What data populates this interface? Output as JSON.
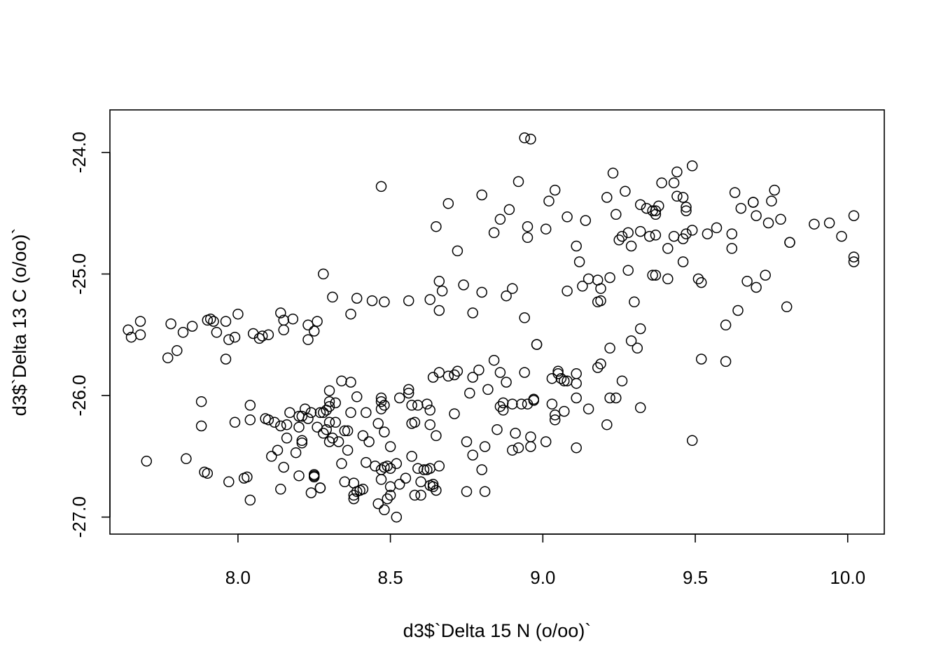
{
  "chart_data": {
    "type": "scatter",
    "title": "",
    "xlabel": "d3$`Delta 15 N (o/oo)`",
    "ylabel": "d3$`Delta 13 C (o/oo)`",
    "xlim": [
      7.58,
      10.12
    ],
    "ylim": [
      -27.14,
      -23.65
    ],
    "xticks": [
      8.0,
      8.5,
      9.0,
      9.5,
      10.0
    ],
    "xtick_labels": [
      "8.0",
      "8.5",
      "9.0",
      "9.5",
      "10.0"
    ],
    "yticks": [
      -27.0,
      -26.0,
      -25.0,
      -24.0
    ],
    "ytick_labels": [
      "-27.0",
      "-26.0",
      "-25.0",
      "-24.0"
    ],
    "grid": false,
    "marker": "open-circle",
    "points": [
      [
        7.64,
        -25.46
      ],
      [
        7.65,
        -25.52
      ],
      [
        7.68,
        -25.39
      ],
      [
        7.68,
        -25.5
      ],
      [
        7.7,
        -26.54
      ],
      [
        7.77,
        -25.69
      ],
      [
        7.78,
        -25.41
      ],
      [
        7.8,
        -25.63
      ],
      [
        7.82,
        -25.48
      ],
      [
        7.83,
        -26.52
      ],
      [
        7.85,
        -25.43
      ],
      [
        7.88,
        -26.05
      ],
      [
        7.88,
        -26.25
      ],
      [
        7.89,
        -26.63
      ],
      [
        7.9,
        -26.64
      ],
      [
        7.9,
        -25.38
      ],
      [
        7.91,
        -25.37
      ],
      [
        7.92,
        -25.39
      ],
      [
        7.93,
        -25.48
      ],
      [
        7.96,
        -25.39
      ],
      [
        7.96,
        -25.7
      ],
      [
        7.97,
        -26.71
      ],
      [
        7.97,
        -25.54
      ],
      [
        7.99,
        -26.22
      ],
      [
        7.99,
        -25.52
      ],
      [
        8.0,
        -25.33
      ],
      [
        8.02,
        -26.68
      ],
      [
        8.03,
        -26.67
      ],
      [
        8.04,
        -26.08
      ],
      [
        8.04,
        -26.2
      ],
      [
        8.04,
        -26.86
      ],
      [
        8.05,
        -25.49
      ],
      [
        8.07,
        -25.53
      ],
      [
        8.08,
        -25.51
      ],
      [
        8.09,
        -26.19
      ],
      [
        8.1,
        -26.2
      ],
      [
        8.1,
        -25.5
      ],
      [
        8.11,
        -26.5
      ],
      [
        8.12,
        -26.22
      ],
      [
        8.13,
        -26.45
      ],
      [
        8.14,
        -26.25
      ],
      [
        8.14,
        -25.32
      ],
      [
        8.14,
        -26.77
      ],
      [
        8.15,
        -25.38
      ],
      [
        8.15,
        -25.46
      ],
      [
        8.15,
        -26.59
      ],
      [
        8.16,
        -26.35
      ],
      [
        8.16,
        -26.24
      ],
      [
        8.17,
        -26.14
      ],
      [
        8.18,
        -25.37
      ],
      [
        8.19,
        -26.47
      ],
      [
        8.2,
        -26.26
      ],
      [
        8.2,
        -26.17
      ],
      [
        8.2,
        -26.66
      ],
      [
        8.21,
        -26.39
      ],
      [
        8.21,
        -26.17
      ],
      [
        8.21,
        -26.37
      ],
      [
        8.22,
        -26.11
      ],
      [
        8.23,
        -25.42
      ],
      [
        8.23,
        -26.19
      ],
      [
        8.23,
        -25.54
      ],
      [
        8.24,
        -26.8
      ],
      [
        8.24,
        -26.14
      ],
      [
        8.25,
        -25.47
      ],
      [
        8.25,
        -26.66
      ],
      [
        8.25,
        -26.65
      ],
      [
        8.25,
        -26.67
      ],
      [
        8.26,
        -26.26
      ],
      [
        8.26,
        -25.39
      ],
      [
        8.27,
        -26.14
      ],
      [
        8.27,
        -26.76
      ],
      [
        8.27,
        -26.76
      ],
      [
        8.28,
        -25.0
      ],
      [
        8.28,
        -26.31
      ],
      [
        8.28,
        -26.14
      ],
      [
        8.29,
        -26.12
      ],
      [
        8.29,
        -26.28
      ],
      [
        8.3,
        -26.22
      ],
      [
        8.3,
        -26.38
      ],
      [
        8.3,
        -26.09
      ],
      [
        8.3,
        -26.05
      ],
      [
        8.3,
        -25.96
      ],
      [
        8.31,
        -25.19
      ],
      [
        8.31,
        -26.35
      ],
      [
        8.32,
        -26.22
      ],
      [
        8.32,
        -26.06
      ],
      [
        8.33,
        -26.38
      ],
      [
        8.34,
        -26.56
      ],
      [
        8.34,
        -25.88
      ],
      [
        8.35,
        -26.71
      ],
      [
        8.35,
        -26.29
      ],
      [
        8.36,
        -26.45
      ],
      [
        8.36,
        -26.29
      ],
      [
        8.37,
        -25.89
      ],
      [
        8.37,
        -26.14
      ],
      [
        8.37,
        -25.33
      ],
      [
        8.38,
        -26.72
      ],
      [
        8.38,
        -26.85
      ],
      [
        8.38,
        -26.82
      ],
      [
        8.39,
        -26.79
      ],
      [
        8.39,
        -25.2
      ],
      [
        8.39,
        -26.01
      ],
      [
        8.4,
        -26.78
      ],
      [
        8.41,
        -26.77
      ],
      [
        8.41,
        -26.33
      ],
      [
        8.42,
        -26.14
      ],
      [
        8.42,
        -26.55
      ],
      [
        8.43,
        -26.38
      ],
      [
        8.44,
        -25.22
      ],
      [
        8.45,
        -26.58
      ],
      [
        8.46,
        -26.89
      ],
      [
        8.46,
        -26.23
      ],
      [
        8.47,
        -26.11
      ],
      [
        8.47,
        -26.05
      ],
      [
        8.47,
        -26.69
      ],
      [
        8.47,
        -26.61
      ],
      [
        8.47,
        -26.02
      ],
      [
        8.47,
        -24.28
      ],
      [
        8.48,
        -25.23
      ],
      [
        8.48,
        -26.59
      ],
      [
        8.48,
        -26.08
      ],
      [
        8.48,
        -26.3
      ],
      [
        8.48,
        -26.94
      ],
      [
        8.49,
        -26.85
      ],
      [
        8.49,
        -26.58
      ],
      [
        8.5,
        -26.82
      ],
      [
        8.5,
        -26.75
      ],
      [
        8.5,
        -26.42
      ],
      [
        8.5,
        -26.6
      ],
      [
        8.52,
        -26.56
      ],
      [
        8.52,
        -27.0
      ],
      [
        8.53,
        -26.73
      ],
      [
        8.53,
        -26.02
      ],
      [
        8.55,
        -26.68
      ],
      [
        8.56,
        -25.22
      ],
      [
        8.56,
        -25.95
      ],
      [
        8.56,
        -25.98
      ],
      [
        8.57,
        -26.5
      ],
      [
        8.57,
        -26.08
      ],
      [
        8.57,
        -26.23
      ],
      [
        8.58,
        -26.22
      ],
      [
        8.58,
        -26.82
      ],
      [
        8.59,
        -26.6
      ],
      [
        8.59,
        -26.08
      ],
      [
        8.6,
        -26.71
      ],
      [
        8.6,
        -26.82
      ],
      [
        8.61,
        -26.61
      ],
      [
        8.62,
        -26.61
      ],
      [
        8.62,
        -26.07
      ],
      [
        8.63,
        -26.12
      ],
      [
        8.63,
        -26.6
      ],
      [
        8.63,
        -25.21
      ],
      [
        8.63,
        -26.24
      ],
      [
        8.63,
        -26.74
      ],
      [
        8.64,
        -26.75
      ],
      [
        8.64,
        -26.73
      ],
      [
        8.64,
        -25.85
      ],
      [
        8.65,
        -26.78
      ],
      [
        8.65,
        -24.61
      ],
      [
        8.65,
        -26.33
      ],
      [
        8.66,
        -26.58
      ],
      [
        8.66,
        -25.81
      ],
      [
        8.66,
        -25.06
      ],
      [
        8.66,
        -25.3
      ],
      [
        8.67,
        -25.14
      ],
      [
        8.69,
        -25.84
      ],
      [
        8.69,
        -24.42
      ],
      [
        8.71,
        -26.15
      ],
      [
        8.71,
        -25.83
      ],
      [
        8.72,
        -25.8
      ],
      [
        8.72,
        -24.81
      ],
      [
        8.74,
        -25.09
      ],
      [
        8.75,
        -26.38
      ],
      [
        8.75,
        -26.79
      ],
      [
        8.76,
        -25.98
      ],
      [
        8.77,
        -25.32
      ],
      [
        8.77,
        -25.85
      ],
      [
        8.77,
        -26.49
      ],
      [
        8.79,
        -25.79
      ],
      [
        8.8,
        -24.35
      ],
      [
        8.8,
        -25.15
      ],
      [
        8.8,
        -26.61
      ],
      [
        8.81,
        -26.42
      ],
      [
        8.81,
        -26.79
      ],
      [
        8.82,
        -25.95
      ],
      [
        8.84,
        -24.66
      ],
      [
        8.84,
        -25.71
      ],
      [
        8.85,
        -26.28
      ],
      [
        8.86,
        -24.55
      ],
      [
        8.86,
        -26.09
      ],
      [
        8.86,
        -25.81
      ],
      [
        8.87,
        -26.12
      ],
      [
        8.87,
        -26.06
      ],
      [
        8.88,
        -25.18
      ],
      [
        8.88,
        -25.89
      ],
      [
        8.89,
        -24.47
      ],
      [
        8.9,
        -26.07
      ],
      [
        8.9,
        -26.45
      ],
      [
        8.9,
        -25.12
      ],
      [
        8.91,
        -26.31
      ],
      [
        8.92,
        -26.43
      ],
      [
        8.92,
        -24.24
      ],
      [
        8.93,
        -26.07
      ],
      [
        8.94,
        -23.88
      ],
      [
        8.94,
        -25.36
      ],
      [
        8.94,
        -25.81
      ],
      [
        8.95,
        -26.07
      ],
      [
        8.95,
        -24.7
      ],
      [
        8.95,
        -24.61
      ],
      [
        8.96,
        -26.34
      ],
      [
        8.96,
        -26.42
      ],
      [
        8.96,
        -23.89
      ],
      [
        8.97,
        -26.03
      ],
      [
        8.97,
        -26.04
      ],
      [
        8.98,
        -25.58
      ],
      [
        8.98,
        -25.58
      ],
      [
        9.01,
        -24.63
      ],
      [
        9.01,
        -26.38
      ],
      [
        9.02,
        -24.4
      ],
      [
        9.03,
        -26.07
      ],
      [
        9.03,
        -25.86
      ],
      [
        9.04,
        -24.31
      ],
      [
        9.04,
        -26.2
      ],
      [
        9.04,
        -26.16
      ],
      [
        9.05,
        -25.8
      ],
      [
        9.05,
        -25.82
      ],
      [
        9.06,
        -25.86
      ],
      [
        9.07,
        -25.88
      ],
      [
        9.07,
        -26.13
      ],
      [
        9.08,
        -25.14
      ],
      [
        9.08,
        -24.53
      ],
      [
        9.08,
        -25.88
      ],
      [
        9.11,
        -26.02
      ],
      [
        9.11,
        -25.82
      ],
      [
        9.11,
        -25.9
      ],
      [
        9.11,
        -26.43
      ],
      [
        9.11,
        -24.77
      ],
      [
        9.12,
        -24.9
      ],
      [
        9.13,
        -25.1
      ],
      [
        9.14,
        -24.56
      ],
      [
        9.15,
        -26.11
      ],
      [
        9.15,
        -25.04
      ],
      [
        9.18,
        -25.23
      ],
      [
        9.18,
        -25.77
      ],
      [
        9.18,
        -25.05
      ],
      [
        9.19,
        -25.22
      ],
      [
        9.19,
        -25.12
      ],
      [
        9.19,
        -25.74
      ],
      [
        9.21,
        -24.37
      ],
      [
        9.21,
        -26.24
      ],
      [
        9.22,
        -26.02
      ],
      [
        9.22,
        -25.03
      ],
      [
        9.22,
        -25.61
      ],
      [
        9.23,
        -24.17
      ],
      [
        9.24,
        -26.02
      ],
      [
        9.24,
        -24.51
      ],
      [
        9.25,
        -24.72
      ],
      [
        9.26,
        -25.88
      ],
      [
        9.26,
        -24.69
      ],
      [
        9.27,
        -24.32
      ],
      [
        9.28,
        -24.66
      ],
      [
        9.28,
        -24.97
      ],
      [
        9.29,
        -24.77
      ],
      [
        9.29,
        -25.55
      ],
      [
        9.3,
        -25.23
      ],
      [
        9.31,
        -25.61
      ],
      [
        9.32,
        -25.45
      ],
      [
        9.32,
        -24.65
      ],
      [
        9.32,
        -24.43
      ],
      [
        9.32,
        -26.1
      ],
      [
        9.34,
        -24.46
      ],
      [
        9.35,
        -24.69
      ],
      [
        9.36,
        -25.01
      ],
      [
        9.36,
        -24.48
      ],
      [
        9.37,
        -24.48
      ],
      [
        9.37,
        -25.01
      ],
      [
        9.37,
        -24.68
      ],
      [
        9.37,
        -24.51
      ],
      [
        9.38,
        -24.44
      ],
      [
        9.39,
        -24.25
      ],
      [
        9.41,
        -24.79
      ],
      [
        9.41,
        -25.04
      ],
      [
        9.43,
        -24.25
      ],
      [
        9.43,
        -24.69
      ],
      [
        9.44,
        -24.16
      ],
      [
        9.44,
        -24.36
      ],
      [
        9.46,
        -24.37
      ],
      [
        9.46,
        -24.9
      ],
      [
        9.46,
        -24.71
      ],
      [
        9.47,
        -24.48
      ],
      [
        9.47,
        -24.67
      ],
      [
        9.47,
        -24.45
      ],
      [
        9.49,
        -24.11
      ],
      [
        9.49,
        -26.37
      ],
      [
        9.49,
        -24.64
      ],
      [
        9.51,
        -25.04
      ],
      [
        9.52,
        -25.07
      ],
      [
        9.52,
        -25.7
      ],
      [
        9.54,
        -24.67
      ],
      [
        9.57,
        -24.62
      ],
      [
        9.6,
        -25.42
      ],
      [
        9.6,
        -25.72
      ],
      [
        9.62,
        -24.67
      ],
      [
        9.62,
        -24.79
      ],
      [
        9.63,
        -24.33
      ],
      [
        9.64,
        -25.3
      ],
      [
        9.65,
        -24.46
      ],
      [
        9.67,
        -25.06
      ],
      [
        9.69,
        -24.41
      ],
      [
        9.69,
        -24.41
      ],
      [
        9.7,
        -24.52
      ],
      [
        9.7,
        -25.11
      ],
      [
        9.73,
        -25.01
      ],
      [
        9.74,
        -24.58
      ],
      [
        9.75,
        -24.4
      ],
      [
        9.76,
        -24.31
      ],
      [
        9.78,
        -24.55
      ],
      [
        9.8,
        -25.27
      ],
      [
        9.81,
        -24.74
      ],
      [
        9.81,
        -24.74
      ],
      [
        9.89,
        -24.59
      ],
      [
        9.94,
        -24.58
      ],
      [
        9.98,
        -24.69
      ],
      [
        10.02,
        -24.52
      ],
      [
        10.02,
        -24.86
      ],
      [
        10.02,
        -24.9
      ]
    ]
  }
}
